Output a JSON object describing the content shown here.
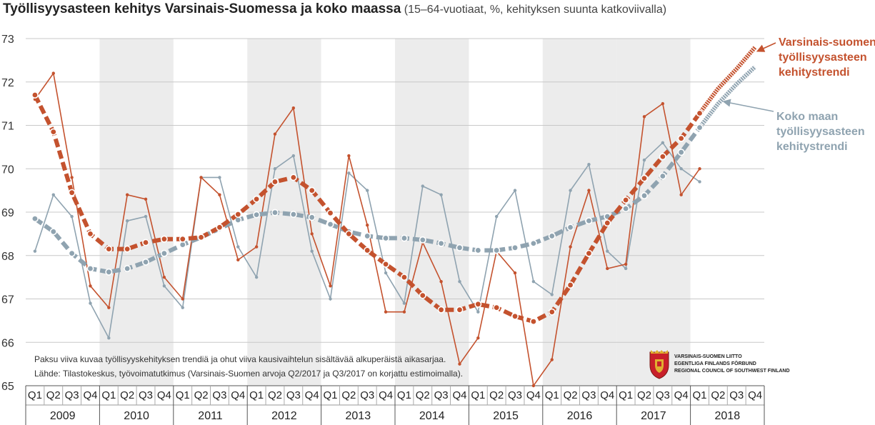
{
  "header": {
    "title": "Työllisyysasteen kehitys Varsinais-Suomessa ja koko maassa",
    "subtitle": "(15–64-vuotiaat, %, kehityksen suunta katkoviivalla)"
  },
  "notes": [
    "Paksu viiva kuvaa työllisyyskehityksen trendiä ja ohut viiva kausivaihtelun sisältävää alkuperäistä aikasarjaa.",
    "Lähde: Tilastokeskus, työvoimatutkimus (Varsinais-Suomen arvoja Q2/2017 ja Q3/2017 on korjattu estimoimalla)."
  ],
  "annotations": {
    "vs_line1": "Varsinais-suomen",
    "vs_line2": "työllisyysasteen",
    "vs_line3": "kehitystrendi",
    "km_line1": "Koko maan",
    "km_line2": "työllisyysasteen",
    "km_line3": "kehitystrendi"
  },
  "logo": {
    "line1": "VARSINAIS-SUOMEN LIITTO",
    "line2": "EGENTLIGA FINLANDS FÖRBUND",
    "line3": "REGIONAL COUNCIL OF SOUTHWEST FINLAND"
  },
  "colors": {
    "vs": "#c4522e",
    "km": "#8fa3b0",
    "band": "#ececec",
    "grid": "#c8c8c8"
  },
  "chart_data": {
    "type": "line",
    "title": "Työllisyysasteen kehitys Varsinais-Suomessa ja koko maassa",
    "subtitle": "(15–64-vuotiaat, %, kehityksen suunta katkoviivalla)",
    "xlabel": "",
    "ylabel": "",
    "ylim": [
      65,
      73
    ],
    "yticks": [
      65,
      66,
      67,
      68,
      69,
      70,
      71,
      72,
      73
    ],
    "quarters": [
      "Q1",
      "Q2",
      "Q3",
      "Q4"
    ],
    "years": [
      "2009",
      "2010",
      "2011",
      "2012",
      "2013",
      "2014",
      "2015",
      "2016",
      "2017",
      "2018"
    ],
    "grid": true,
    "shaded_years": [
      "2010",
      "2012",
      "2014",
      "2016",
      "2017"
    ],
    "series": [
      {
        "name": "Varsinais-suomen työllisyysasteen kehitystrendi",
        "style": "thick",
        "values": [
          71.7,
          70.85,
          69.45,
          68.5,
          68.15,
          68.15,
          68.3,
          68.38,
          68.38,
          68.42,
          68.65,
          68.95,
          69.3,
          69.7,
          69.8,
          69.5,
          68.98,
          68.5,
          68.12,
          67.8,
          67.5,
          67.08,
          66.75,
          66.75,
          66.88,
          66.8,
          66.6,
          66.48,
          66.7,
          67.32,
          68.05,
          68.75,
          69.28,
          69.78,
          70.28,
          70.7,
          71.28
        ],
        "projection": [
          71.28,
          71.85,
          72.3,
          72.8
        ]
      },
      {
        "name": "",
        "style": "thin",
        "values": [
          71.6,
          72.2,
          69.8,
          67.3,
          66.8,
          69.4,
          69.3,
          67.5,
          67.0,
          69.8,
          69.4,
          67.9,
          68.2,
          70.8,
          71.4,
          68.5,
          67.3,
          70.3,
          68.7,
          66.7,
          66.7,
          68.3,
          67.4,
          65.5,
          66.1,
          68.1,
          67.6,
          65.0,
          65.6,
          68.2,
          69.5,
          67.7,
          67.8,
          71.2,
          71.5,
          69.4,
          70.0
        ]
      },
      {
        "name": "Koko maan työllisyysasteen kehitystrendi",
        "style": "thick",
        "values": [
          68.85,
          68.55,
          68.05,
          67.7,
          67.62,
          67.7,
          67.85,
          68.05,
          68.25,
          68.42,
          68.62,
          68.82,
          68.94,
          68.99,
          68.95,
          68.88,
          68.72,
          68.55,
          68.45,
          68.4,
          68.4,
          68.36,
          68.28,
          68.18,
          68.12,
          68.12,
          68.18,
          68.28,
          68.45,
          68.65,
          68.8,
          68.9,
          69.08,
          69.38,
          69.83,
          70.38,
          70.95
        ],
        "projection": [
          70.95,
          71.5,
          71.95,
          72.35
        ]
      },
      {
        "name": "",
        "style": "thin",
        "values": [
          68.1,
          69.4,
          68.9,
          66.9,
          66.1,
          68.8,
          68.9,
          67.3,
          66.8,
          69.8,
          69.8,
          68.2,
          67.5,
          70.0,
          70.3,
          68.1,
          67.0,
          69.9,
          69.5,
          67.6,
          66.9,
          69.6,
          69.4,
          67.4,
          66.7,
          68.9,
          69.5,
          67.4,
          67.1,
          69.5,
          70.1,
          68.1,
          67.7,
          70.2,
          70.6,
          70.0,
          69.7
        ]
      }
    ]
  }
}
